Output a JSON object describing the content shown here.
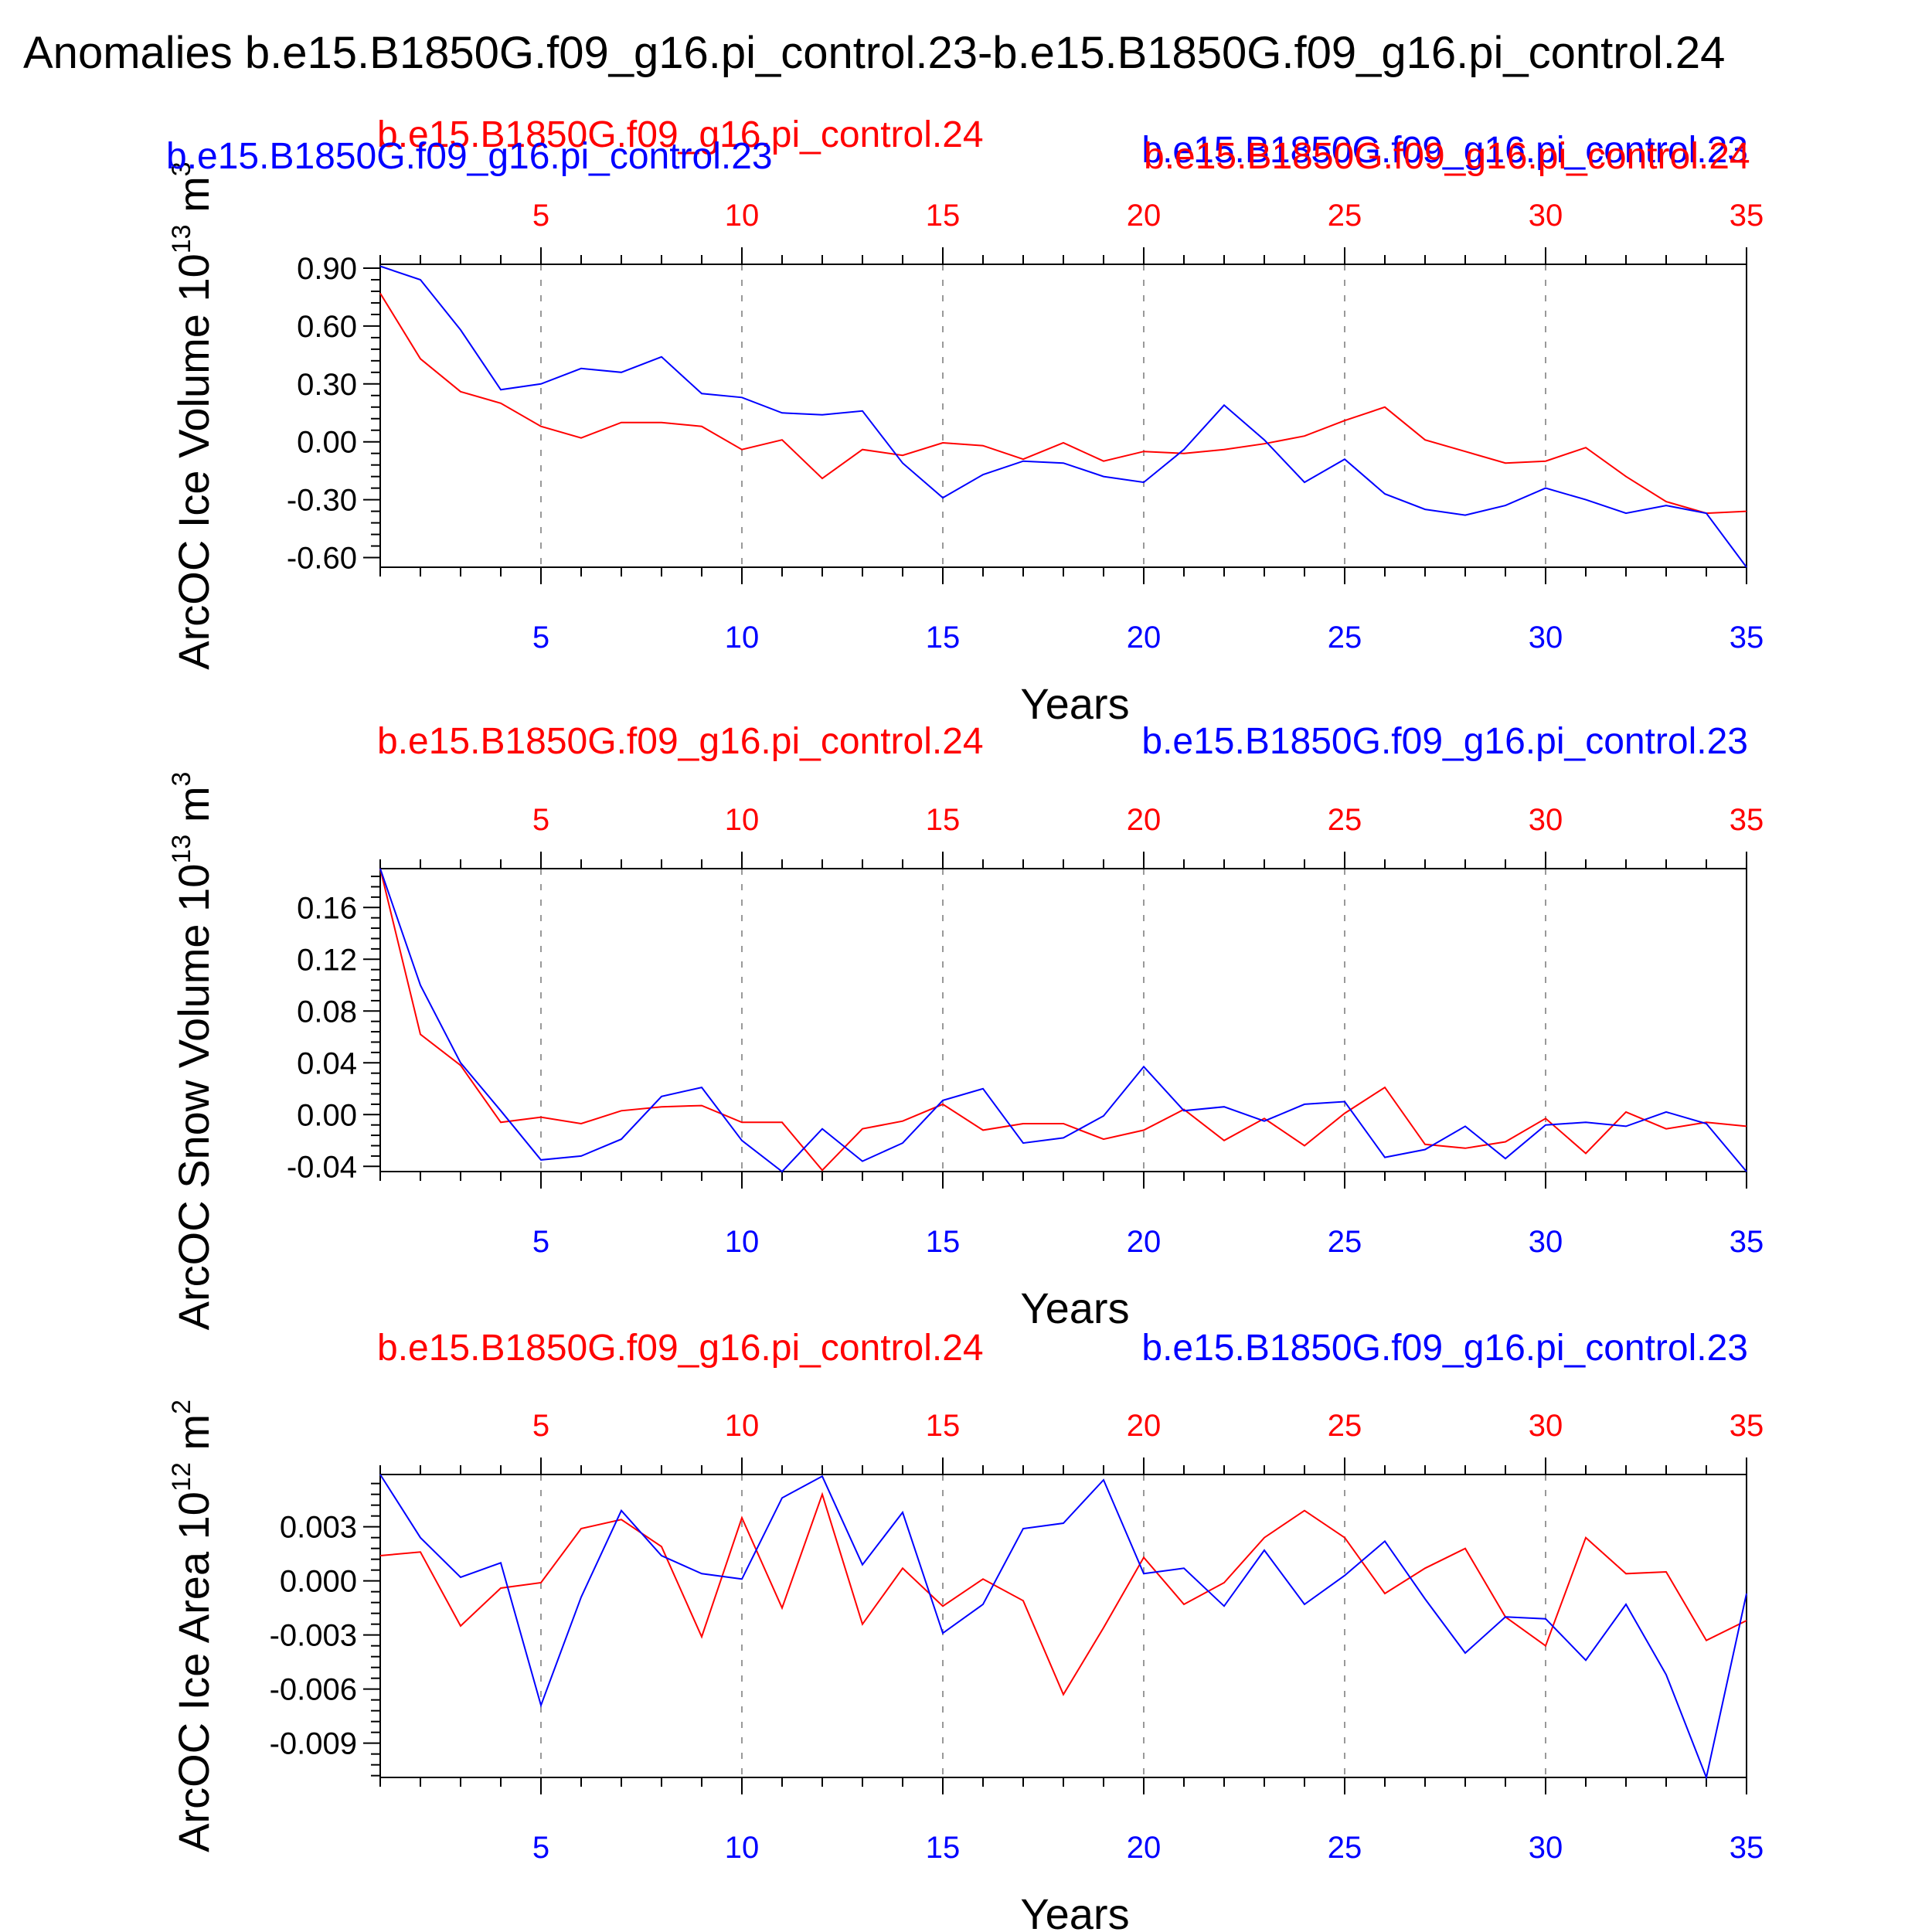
{
  "main_title": "Anomalies b.e15.B1850G.f09_g16.pi_control.23-b.e15.B1850G.f09_g16.pi_control.24",
  "colors": {
    "run23": "#0000ff",
    "run24": "#ff0000",
    "axes": "#000000",
    "grid": "#999999"
  },
  "run_labels": {
    "red": "b.e15.B1850G.f09_g16.pi_control.24",
    "blue": "b.e15.B1850G.f09_g16.pi_control.23"
  },
  "chart_data": [
    {
      "type": "line",
      "ylabel": "ArcOC Ice Volume 10",
      "ylabel_exp": "13",
      "ylabel_unit": " m",
      "ylabel_unit_exp": "3",
      "xlabel": "Years",
      "xlim": [
        1,
        35
      ],
      "ylim": [
        -0.65,
        0.92
      ],
      "yticks": [
        -0.6,
        -0.3,
        0.0,
        0.3,
        0.6,
        0.9
      ],
      "ytick_labels": [
        "-0.60",
        "-0.30",
        "0.00",
        "0.30",
        "0.60",
        "0.90"
      ],
      "xticks": [
        5,
        10,
        15,
        20,
        25,
        30,
        35
      ],
      "x": [
        1,
        2,
        3,
        4,
        5,
        6,
        7,
        8,
        9,
        10,
        11,
        12,
        13,
        14,
        15,
        16,
        17,
        18,
        19,
        20,
        21,
        22,
        23,
        24,
        25,
        26,
        27,
        28,
        29,
        30,
        31,
        32,
        33,
        34,
        35
      ],
      "series": [
        {
          "name": "b.e15.B1850G.f09_g16.pi_control.24",
          "color": "#ff0000",
          "values": [
            0.77,
            0.43,
            0.26,
            0.2,
            0.08,
            0.02,
            0.1,
            0.1,
            0.08,
            -0.04,
            0.01,
            -0.19,
            -0.04,
            -0.07,
            -0.005,
            -0.02,
            -0.09,
            -0.005,
            -0.1,
            -0.05,
            -0.06,
            -0.04,
            -0.01,
            0.03,
            0.11,
            0.18,
            0.01,
            -0.05,
            -0.11,
            -0.1,
            -0.03,
            -0.18,
            -0.31,
            -0.37,
            -0.36
          ]
        },
        {
          "name": "b.e15.B1850G.f09_g16.pi_control.23",
          "color": "#0000ff",
          "values": [
            0.91,
            0.84,
            0.58,
            0.27,
            0.3,
            0.38,
            0.36,
            0.44,
            0.25,
            0.23,
            0.15,
            0.14,
            0.16,
            -0.11,
            -0.29,
            -0.17,
            -0.1,
            -0.11,
            -0.18,
            -0.21,
            -0.04,
            0.19,
            0.01,
            -0.21,
            -0.09,
            -0.27,
            -0.35,
            -0.38,
            -0.33,
            -0.24,
            -0.3,
            -0.37,
            -0.33,
            -0.37,
            -0.65
          ]
        }
      ]
    },
    {
      "type": "line",
      "ylabel": "ArcOC Snow Volume 10",
      "ylabel_exp": "13",
      "ylabel_unit": " m",
      "ylabel_unit_exp": "3",
      "xlabel": "Years",
      "xlim": [
        1,
        35
      ],
      "ylim": [
        -0.044,
        0.19
      ],
      "yticks": [
        -0.04,
        0.0,
        0.04,
        0.08,
        0.12,
        0.16
      ],
      "ytick_labels": [
        "-0.04",
        "0.00",
        "0.04",
        "0.08",
        "0.12",
        "0.16"
      ],
      "xticks": [
        5,
        10,
        15,
        20,
        25,
        30,
        35
      ],
      "x": [
        1,
        2,
        3,
        4,
        5,
        6,
        7,
        8,
        9,
        10,
        11,
        12,
        13,
        14,
        15,
        16,
        17,
        18,
        19,
        20,
        21,
        22,
        23,
        24,
        25,
        26,
        27,
        28,
        29,
        30,
        31,
        32,
        33,
        34,
        35
      ],
      "series": [
        {
          "name": "b.e15.B1850G.f09_g16.pi_control.24",
          "color": "#ff0000",
          "values": [
            0.19,
            0.062,
            0.038,
            -0.006,
            -0.002,
            -0.007,
            0.003,
            0.006,
            0.007,
            -0.006,
            -0.006,
            -0.043,
            -0.011,
            -0.005,
            0.008,
            -0.012,
            -0.007,
            -0.007,
            -0.019,
            -0.012,
            0.004,
            -0.02,
            -0.003,
            -0.024,
            0.001,
            0.021,
            -0.023,
            -0.026,
            -0.021,
            -0.003,
            -0.03,
            0.002,
            -0.011,
            -0.006,
            -0.009
          ]
        },
        {
          "name": "b.e15.B1850G.f09_g16.pi_control.23",
          "color": "#0000ff",
          "values": [
            0.19,
            0.1,
            0.04,
            0.003,
            -0.035,
            -0.032,
            -0.019,
            0.014,
            0.021,
            -0.02,
            -0.044,
            -0.011,
            -0.036,
            -0.022,
            0.011,
            0.02,
            -0.022,
            -0.018,
            -0.001,
            0.037,
            0.003,
            0.006,
            -0.005,
            0.008,
            0.01,
            -0.033,
            -0.027,
            -0.009,
            -0.034,
            -0.008,
            -0.006,
            -0.009,
            0.002,
            -0.007,
            -0.044
          ]
        }
      ]
    },
    {
      "type": "line",
      "ylabel": "ArcOC Ice Area 10",
      "ylabel_exp": "12",
      "ylabel_unit": " m",
      "ylabel_unit_exp": "2",
      "xlabel": "Years",
      "xlim": [
        1,
        35
      ],
      "ylim": [
        -0.0109,
        0.0059
      ],
      "yticks": [
        -0.009,
        -0.006,
        -0.003,
        0.0,
        0.003
      ],
      "ytick_labels": [
        "-0.009",
        "-0.006",
        "-0.003",
        "0.000",
        "0.003"
      ],
      "xticks": [
        5,
        10,
        15,
        20,
        25,
        30,
        35
      ],
      "x": [
        1,
        2,
        3,
        4,
        5,
        6,
        7,
        8,
        9,
        10,
        11,
        12,
        13,
        14,
        15,
        16,
        17,
        18,
        19,
        20,
        21,
        22,
        23,
        24,
        25,
        26,
        27,
        28,
        29,
        30,
        31,
        32,
        33,
        34,
        35
      ],
      "series": [
        {
          "name": "b.e15.B1850G.f09_g16.pi_control.24",
          "color": "#ff0000",
          "values": [
            0.0014,
            0.0016,
            -0.0025,
            -0.0004,
            -0.0001,
            0.0029,
            0.0034,
            0.0019,
            -0.0031,
            0.0035,
            -0.0015,
            0.0048,
            -0.0024,
            0.0007,
            -0.0014,
            0.0001,
            -0.0011,
            -0.0063,
            -0.0026,
            0.0013,
            -0.0013,
            -0.0001,
            0.0024,
            0.0039,
            0.0024,
            -0.0007,
            0.0007,
            0.0018,
            -0.002,
            -0.0036,
            0.0024,
            0.0004,
            0.0005,
            -0.0033,
            -0.0022
          ]
        },
        {
          "name": "b.e15.B1850G.f09_g16.pi_control.23",
          "color": "#0000ff",
          "values": [
            0.0059,
            0.0024,
            0.0002,
            0.001,
            -0.0069,
            -0.0009,
            0.0039,
            0.0014,
            0.0004,
            0.0001,
            0.0046,
            0.0058,
            0.0009,
            0.0038,
            -0.0029,
            -0.0013,
            0.0029,
            0.0032,
            0.0056,
            0.0004,
            0.0007,
            -0.0014,
            0.0017,
            -0.0013,
            0.0003,
            0.0022,
            -0.001,
            -0.004,
            -0.002,
            -0.0021,
            -0.0044,
            -0.0013,
            -0.0052,
            -0.0109,
            -0.0007
          ]
        }
      ]
    }
  ]
}
